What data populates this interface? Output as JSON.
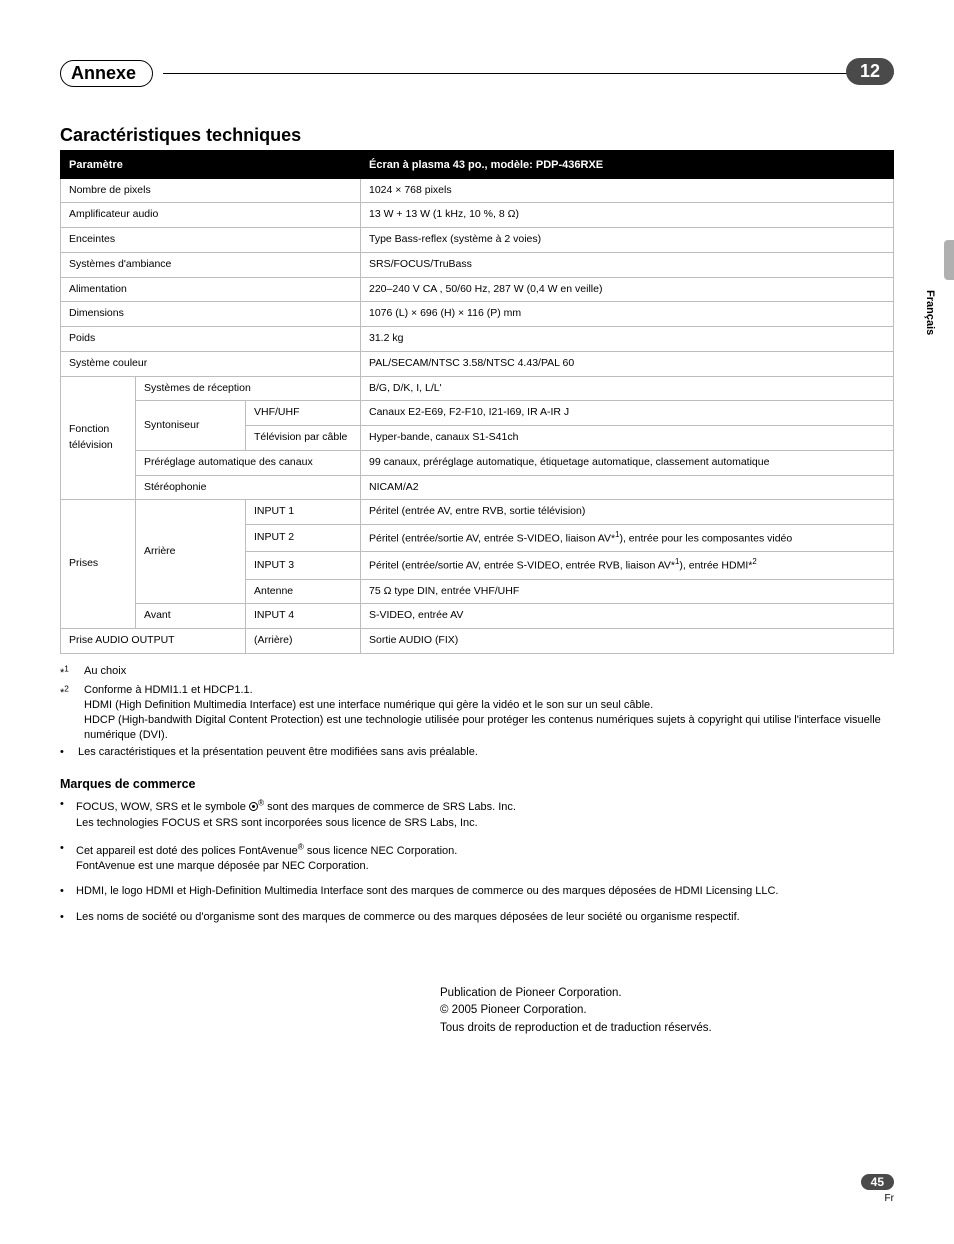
{
  "page": {
    "top_badge": "12",
    "heading_pill": "Annexe",
    "side_lang": "Français",
    "bottom_page_number": "45",
    "bottom_lang": "Fr"
  },
  "section_title": "Caractéristiques techniques",
  "table": {
    "header": {
      "left": "Paramètre",
      "right": "Écran à plasma 43 po., modèle: PDP-436RXE"
    },
    "rows": {
      "pixels": {
        "label": "Nombre de pixels",
        "value": "1024 × 768 pixels"
      },
      "amp": {
        "label": "Amplificateur audio",
        "value": "13 W + 13 W (1 kHz, 10 %, 8 Ω)"
      },
      "speakers": {
        "label": "Enceintes",
        "value": "Type Bass-reflex (système à 2 voies)"
      },
      "surround": {
        "label": "Systèmes d'ambiance",
        "value": "SRS/FOCUS/TruBass"
      },
      "power": {
        "label": "Alimentation",
        "value": "220–240 V CA , 50/60 Hz, 287 W (0,4 W en veille)"
      },
      "dims": {
        "label": "Dimensions",
        "value": "1076 (L) × 696 (H) × 116 (P) mm"
      },
      "weight": {
        "label": "Poids",
        "value": "31.2 kg"
      },
      "colorsys": {
        "label": "Système couleur",
        "value": "PAL/SECAM/NTSC 3.58/NTSC 4.43/PAL 60"
      },
      "tv_label": "Fonction télévision",
      "tv_reception": {
        "label": "Systèmes de réception",
        "value": "B/G, D/K, I, L/L'"
      },
      "tv_tuner_label": "Syntoniseur",
      "tv_vhf": {
        "label": "VHF/UHF",
        "value": "Canaux E2-E69, F2-F10, I21-I69, IR A-IR J"
      },
      "tv_cable": {
        "label": "Télévision par câble",
        "value": "Hyper-bande, canaux S1-S41ch"
      },
      "tv_preset": {
        "label": "Préréglage automatique des canaux",
        "value": "99 canaux, préréglage automatique, étiquetage automatique, classement automatique"
      },
      "tv_stereo": {
        "label": "Stéréophonie",
        "value": "NICAM/A2"
      },
      "prises_label": "Prises",
      "prises_rear_label": "Arrière",
      "prises_in1": {
        "label": "INPUT 1",
        "value": "Péritel (entrée AV, entre RVB, sortie télévision)"
      },
      "prises_in2": {
        "label": "INPUT 2",
        "value_html": "Péritel (entrée/sortie AV, entrée S-VIDEO, liaison AV*<sup>1</sup>), entrée pour les composantes vidéo"
      },
      "prises_in3": {
        "label": "INPUT 3",
        "value_html": "Péritel (entrée/sortie AV, entrée S-VIDEO, entrée RVB, liaison AV*<sup>1</sup>), entrée HDMI*<sup>2</sup>"
      },
      "prises_ant": {
        "label": "Antenne",
        "value": "75 Ω type DIN, entrée VHF/UHF"
      },
      "prises_front_label": "Avant",
      "prises_in4": {
        "label": "INPUT 4",
        "value": "S-VIDEO, entrée AV"
      },
      "audio_out": {
        "label": "Prise AUDIO OUTPUT",
        "sub": "(Arrière)",
        "value": "Sortie AUDIO (FIX)"
      }
    }
  },
  "footnotes": {
    "f1_mark": "*1",
    "f1_text": "Au choix",
    "f2_mark": "*2",
    "f2_line1": "Conforme à HDMI1.1 et HDCP1.1.",
    "f2_line2": "HDMI (High Definition Multimedia Interface) est une interface numérique qui gère la vidéo et le son sur un seul câble.",
    "f2_line3": "HDCP (High-bandwith Digital Content Protection) est une technologie utilisée pour protéger les contenus numériques sujets à copyright qui utilise l'interface visuelle numérique (DVI).",
    "b1": "Les caractéristiques et la présentation peuvent être modifiées sans avis préalable."
  },
  "trademarks": {
    "heading": "Marques de commerce",
    "t1a_html": "FOCUS, WOW, SRS et le symbole <span class=\"srs-symbol\"></span><sup>®</sup> sont des marques de commerce de SRS Labs. Inc.",
    "t1b": "Les technologies FOCUS et SRS sont incorporées sous licence de SRS Labs, Inc.",
    "t2a_html": "Cet appareil est doté des polices FontAvenue<sup>®</sup> sous licence NEC Corporation.",
    "t2b": "FontAvenue est une marque déposée par NEC Corporation.",
    "t3": "HDMI, le logo HDMI et High-Definition Multimedia Interface sont des marques de commerce ou des marques déposées de HDMI Licensing LLC.",
    "t4": "Les noms de société ou d'organisme sont des marques de commerce ou des marques déposées de leur société ou organisme respectif."
  },
  "publication": {
    "l1": "Publication de Pioneer Corporation.",
    "l2": "© 2005 Pioneer Corporation.",
    "l3": "Tous droits de reproduction et de traduction réservés."
  }
}
